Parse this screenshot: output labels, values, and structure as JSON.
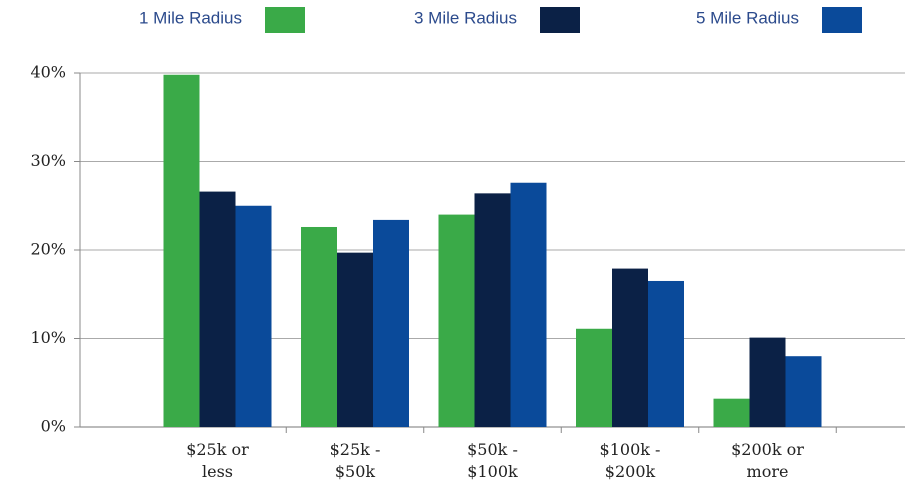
{
  "chart_data": {
    "type": "bar",
    "legend": "top",
    "categories": [
      "$25k or less",
      "$25k - $50k",
      "$50k - $100k",
      "$100k - $200k",
      "$200k or more"
    ],
    "series": [
      {
        "name": "1 Mile Radius",
        "color": "#3aaa48",
        "values": [
          39.8,
          22.6,
          24.0,
          11.1,
          3.2
        ]
      },
      {
        "name": "3 Mile Radius",
        "color": "#0b2146",
        "values": [
          26.6,
          19.7,
          26.4,
          17.9,
          10.1
        ]
      },
      {
        "name": "5 Mile Radius",
        "color": "#0a4a9a",
        "values": [
          25.0,
          23.4,
          27.6,
          16.5,
          8.0
        ]
      }
    ],
    "ylim": [
      0,
      40
    ],
    "yticks": [
      {
        "value": 0,
        "label": "0%"
      },
      {
        "value": 10,
        "label": "10%"
      },
      {
        "value": 20,
        "label": "20%"
      },
      {
        "value": 30,
        "label": "30%"
      },
      {
        "value": 40,
        "label": "40%"
      }
    ],
    "grid": true
  }
}
